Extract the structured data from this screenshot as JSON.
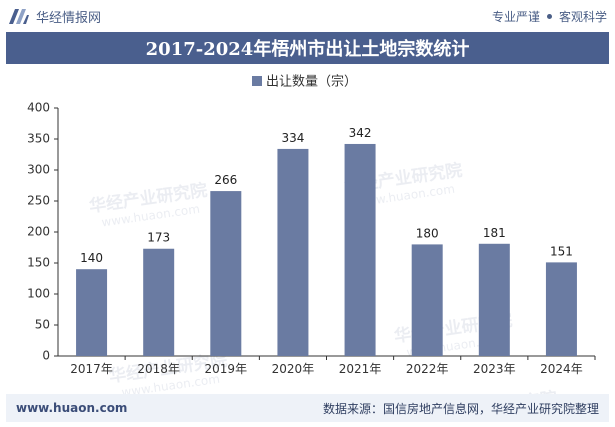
{
  "header": {
    "brand": "华经情报网",
    "slogan_left": "专业严谨",
    "slogan_right": "客观科学"
  },
  "title": "2017-2024年梧州市出让土地宗数统计",
  "footer": {
    "website": "www.huaon.com",
    "source": "数据来源：国信房地产信息网，华经产业研究院整理"
  },
  "watermark": {
    "cn": "华经产业研究院",
    "en": "www.huaon.com"
  },
  "colors": {
    "bar": "#6a7ba2",
    "title_bg": "#4a5f8e"
  },
  "chart_data": {
    "type": "bar",
    "title": "2017-2024年梧州市出让土地宗数统计",
    "categories": [
      "2017年",
      "2018年",
      "2019年",
      "2020年",
      "2021年",
      "2022年",
      "2023年",
      "2024年"
    ],
    "series": [
      {
        "name": "出让数量（宗）",
        "values": [
          140,
          173,
          266,
          334,
          342,
          180,
          181,
          151
        ]
      }
    ],
    "yticks": [
      0,
      50,
      100,
      150,
      200,
      250,
      300,
      350,
      400
    ],
    "ylim": [
      0,
      400
    ],
    "xlabel": "",
    "ylabel": "",
    "legend_position": "top-center",
    "grid": false
  }
}
